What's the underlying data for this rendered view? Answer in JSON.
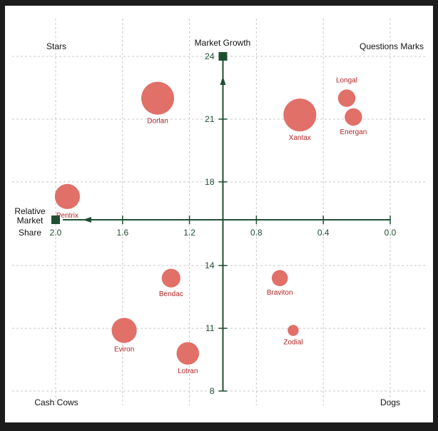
{
  "chart_data": {
    "type": "bubble",
    "quadrants": {
      "top_left": "Stars",
      "top_right": "Questions Marks",
      "bottom_left": "Cash Cows",
      "bottom_right": "Dogs"
    },
    "y_axis_title": "Market Growth",
    "x_axis_title_lines": [
      "Relative",
      "Market",
      "Share"
    ],
    "x_axis": {
      "reversed": true,
      "ticks": [
        "2.0",
        "1.6",
        "1.2",
        "0.8",
        "0.4",
        "0.0"
      ],
      "range": [
        2.0,
        0.0
      ]
    },
    "y_axis": {
      "ticks": [
        "8",
        "11",
        "14",
        "18",
        "21",
        "24"
      ],
      "range": [
        8,
        24
      ],
      "crosses_x_at": 1.0
    },
    "grid": "dashed",
    "bubbles": [
      {
        "name": "Dorlan",
        "share": 1.39,
        "growth": 22.0,
        "size": 10
      },
      {
        "name": "Pentrix",
        "share": 1.93,
        "growth": 17.3,
        "size": 7
      },
      {
        "name": "Xantax",
        "share": 0.54,
        "growth": 21.2,
        "size": 10
      },
      {
        "name": "Longal",
        "share": 0.26,
        "growth": 22.0,
        "size": 4
      },
      {
        "name": "Energan",
        "share": 0.22,
        "growth": 21.1,
        "size": 4
      },
      {
        "name": "Bendac",
        "share": 1.31,
        "growth": 13.4,
        "size": 4.5
      },
      {
        "name": "Braviton",
        "share": 0.66,
        "growth": 13.4,
        "size": 3.5
      },
      {
        "name": "Eviron",
        "share": 1.59,
        "growth": 10.9,
        "size": 7
      },
      {
        "name": "Lotran",
        "share": 1.21,
        "growth": 9.8,
        "size": 6
      },
      {
        "name": "Zodial",
        "share": 0.58,
        "growth": 10.9,
        "size": 1.5
      }
    ],
    "colors": {
      "bubble": "#e07068",
      "bubble_label": "#b32424",
      "axis": "#1f4f32",
      "grid": "#c8c8c8"
    }
  }
}
